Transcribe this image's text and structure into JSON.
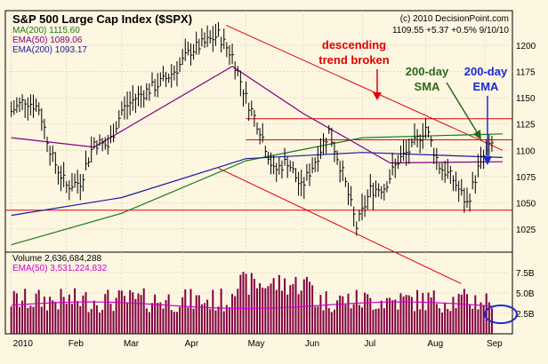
{
  "header": {
    "title": "S&P 500 Large Cap Index ($SPX)",
    "copyright": "(c) 2010 DecisionPoint.com",
    "quote": "1109.55  +5.37  +0.5%  9/10/10"
  },
  "legend": [
    {
      "label": "MA(200) 1115.60",
      "color": "#1a7a1a"
    },
    {
      "label": "EMA(50) 1089.06",
      "color": "#800080"
    },
    {
      "label": "EMA(200) 1093.17",
      "color": "#1a1aa0"
    }
  ],
  "volume_legend": [
    {
      "label": "Volume 2,636,684,288",
      "color": "#000000"
    },
    {
      "label": "EMA(50) 3,531,224,832",
      "color": "#cc00cc"
    }
  ],
  "annotations": {
    "trend_line1": "descending",
    "trend_line2": "trend broken",
    "sma_line1": "200-day",
    "sma_line2": "SMA",
    "ema_line1": "200-day",
    "ema_line2": "EMA"
  },
  "colors": {
    "background": "#fdf6e1",
    "price_bars": "#000000",
    "ma200": "#1a7a1a",
    "ema50": "#800080",
    "ema200": "#1a1aa0",
    "trendlines": "#e00000",
    "volume_bars": "#800040",
    "volume_ema": "#cc00cc",
    "sma_arrow": "#2a6a1a",
    "ema_arrow": "#1a2ad0"
  },
  "chart_data": {
    "type": "ohlc-bar-with-volume",
    "title": "S&P 500 Large Cap Index ($SPX)",
    "x_axis_labels": [
      "2010",
      "Feb",
      "Mar",
      "Apr",
      "May",
      "Jun",
      "Jul",
      "Aug",
      "Sep"
    ],
    "price_axis": {
      "ticks": [
        1025,
        1050,
        1075,
        1100,
        1125,
        1150,
        1175,
        1200
      ],
      "ylim": [
        1003,
        1233
      ],
      "grid": true
    },
    "volume_axis": {
      "ticks": [
        "7.5B",
        "5.0B",
        "2.5B"
      ],
      "ylim_billions": [
        0,
        10
      ]
    },
    "price_close_weekly": [
      {
        "date": "2010-01-04",
        "close": 1137
      },
      {
        "date": "2010-01-11",
        "close": 1148
      },
      {
        "date": "2010-01-18",
        "close": 1140
      },
      {
        "date": "2010-01-25",
        "close": 1092
      },
      {
        "date": "2010-02-01",
        "close": 1066
      },
      {
        "date": "2010-02-08",
        "close": 1070
      },
      {
        "date": "2010-02-15",
        "close": 1108
      },
      {
        "date": "2010-02-22",
        "close": 1104
      },
      {
        "date": "2010-03-01",
        "close": 1138
      },
      {
        "date": "2010-03-08",
        "close": 1150
      },
      {
        "date": "2010-03-15",
        "close": 1158
      },
      {
        "date": "2010-03-22",
        "close": 1166
      },
      {
        "date": "2010-03-29",
        "close": 1178
      },
      {
        "date": "2010-04-05",
        "close": 1195
      },
      {
        "date": "2010-04-12",
        "close": 1202
      },
      {
        "date": "2010-04-19",
        "close": 1210
      },
      {
        "date": "2010-04-26",
        "close": 1190
      },
      {
        "date": "2010-05-03",
        "close": 1150
      },
      {
        "date": "2010-05-10",
        "close": 1120
      },
      {
        "date": "2010-05-17",
        "close": 1080
      },
      {
        "date": "2010-05-24",
        "close": 1090
      },
      {
        "date": "2010-05-31",
        "close": 1064
      },
      {
        "date": "2010-06-07",
        "close": 1090
      },
      {
        "date": "2010-06-14",
        "close": 1118
      },
      {
        "date": "2010-06-21",
        "close": 1078
      },
      {
        "date": "2010-06-28",
        "close": 1027
      },
      {
        "date": "2010-07-05",
        "close": 1062
      },
      {
        "date": "2010-07-12",
        "close": 1065
      },
      {
        "date": "2010-07-19",
        "close": 1090
      },
      {
        "date": "2010-07-26",
        "close": 1102
      },
      {
        "date": "2010-08-02",
        "close": 1122
      },
      {
        "date": "2010-08-09",
        "close": 1085
      },
      {
        "date": "2010-08-16",
        "close": 1072
      },
      {
        "date": "2010-08-23",
        "close": 1049
      },
      {
        "date": "2010-08-30",
        "close": 1090
      },
      {
        "date": "2010-09-06",
        "close": 1109.55
      }
    ],
    "series": [
      {
        "name": "MA(200)",
        "last_value": 1115.6,
        "values_at": [
          [
            "2010-01-04",
            1010
          ],
          [
            "2010-03-01",
            1040
          ],
          [
            "2010-05-03",
            1090
          ],
          [
            "2010-07-01",
            1112
          ],
          [
            "2010-09-10",
            1115.6
          ]
        ]
      },
      {
        "name": "EMA(50)",
        "last_value": 1089.06,
        "values_at": [
          [
            "2010-01-04",
            1112
          ],
          [
            "2010-02-15",
            1103
          ],
          [
            "2010-04-26",
            1180
          ],
          [
            "2010-06-01",
            1135
          ],
          [
            "2010-07-15",
            1088
          ],
          [
            "2010-09-10",
            1089.06
          ]
        ]
      },
      {
        "name": "EMA(200)",
        "last_value": 1093.17,
        "values_at": [
          [
            "2010-01-04",
            1038
          ],
          [
            "2010-03-01",
            1055
          ],
          [
            "2010-05-03",
            1092
          ],
          [
            "2010-07-01",
            1098
          ],
          [
            "2010-09-10",
            1093.17
          ]
        ]
      }
    ],
    "horizontal_lines": [
      1130,
      1110,
      1043
    ],
    "descending_trendlines": [
      {
        "from": [
          "2010-04-23",
          1219
        ],
        "to": [
          "2010-09-10",
          1100
        ]
      },
      {
        "from": [
          "2010-04-19",
          1083
        ],
        "to": [
          "2010-08-20",
          973
        ]
      }
    ],
    "volume_ema50_billions": 3.53,
    "volume_last_billions": 2.64
  }
}
